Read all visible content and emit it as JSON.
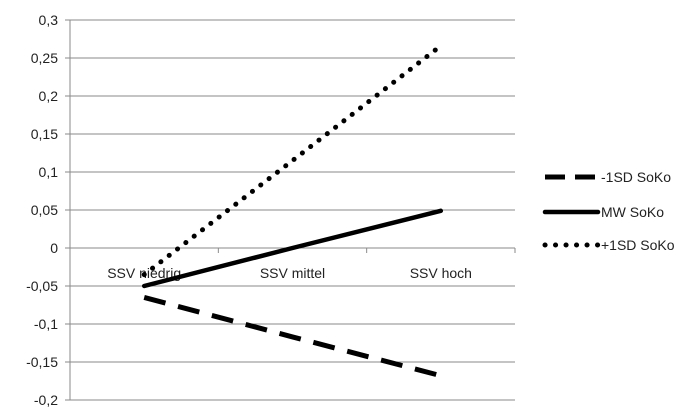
{
  "chart_data": {
    "type": "line",
    "title": "",
    "xlabel": "",
    "ylabel": "",
    "categories": [
      "SSV niedrig",
      "SSV mittel",
      "SSV hoch"
    ],
    "ylim": [
      -0.2,
      0.3
    ],
    "y_ticks": [
      0.3,
      0.25,
      0.2,
      0.15,
      0.1,
      0.05,
      0,
      -0.05,
      -0.1,
      -0.15,
      -0.2
    ],
    "y_tick_labels": [
      "0,3",
      "0,25",
      "0,2",
      "0,15",
      "0,1",
      "0,05",
      "0",
      "-0,05",
      "-0,1",
      "-0,15",
      "-0,2"
    ],
    "grid": true,
    "legend_position": "right",
    "series": [
      {
        "name": "-1SD SoKo",
        "style": "dashed",
        "color": "#000000",
        "values": [
          -0.065,
          -0.117,
          -0.168
        ]
      },
      {
        "name": "MW SoKo",
        "style": "solid",
        "color": "#000000",
        "values": [
          -0.05,
          0.0,
          0.049
        ]
      },
      {
        "name": "+1SD SoKo",
        "style": "dotted",
        "color": "#000000",
        "values": [
          -0.035,
          0.115,
          0.266
        ]
      }
    ]
  }
}
